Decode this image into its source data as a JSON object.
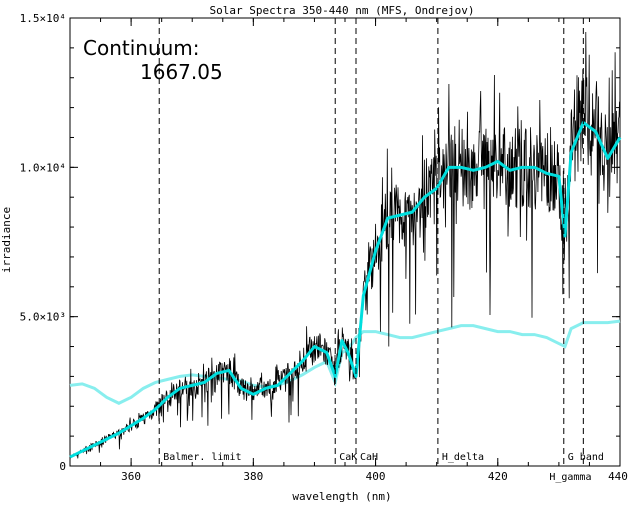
{
  "chart_data": {
    "type": "line",
    "title": "Solar Spectra 350-440 nm (MFS, Ondrejov)",
    "xlabel": "wavelength (nm)",
    "ylabel": "irradiance",
    "xlim": [
      350,
      440
    ],
    "ylim": [
      0,
      15000
    ],
    "xticks": [
      360,
      380,
      400,
      420,
      440
    ],
    "xtick_labels": [
      "360",
      "380",
      "400",
      "420",
      "440"
    ],
    "yticks": [
      0,
      5000,
      10000,
      15000
    ],
    "ytick_labels": [
      "0",
      "5.0×10³",
      "1.0×10⁴",
      "1.5×10⁴"
    ],
    "annotation": {
      "line1": "Continuum:",
      "line2": "1667.05"
    },
    "colors": {
      "spectrum": "#000000",
      "smoothed": "#00dede",
      "continuum": "#88eeee"
    },
    "lines": [
      {
        "label": "Balmer. limit",
        "x": 364.6
      },
      {
        "label": "CaK",
        "x": 393.4
      },
      {
        "label": "CaH",
        "x": 396.8
      },
      {
        "label": "H_delta",
        "x": 410.2
      },
      {
        "label": "G band",
        "x": 430.8
      },
      {
        "label": "H_gamma",
        "x": 434.0
      }
    ],
    "series": [
      {
        "x": [
          350,
          352,
          354,
          356,
          358,
          360,
          362,
          364,
          366,
          368,
          370,
          372,
          374,
          376,
          378,
          380,
          382,
          384,
          386,
          388,
          390,
          392,
          393.4,
          394.5,
          395.5,
          396.8,
          398,
          400,
          402,
          404,
          406,
          408,
          410,
          412,
          414,
          416,
          418,
          420,
          422,
          424,
          426,
          428,
          430,
          431,
          432,
          434,
          436,
          438,
          440
        ],
        "values": [
          300,
          500,
          700,
          900,
          1100,
          1350,
          1600,
          1900,
          2300,
          2600,
          2700,
          2800,
          3100,
          3200,
          2600,
          2400,
          2600,
          2700,
          3100,
          3500,
          4000,
          3800,
          3000,
          4200,
          3800,
          3000,
          5700,
          7200,
          8300,
          8400,
          8500,
          9000,
          9300,
          10000,
          10000,
          9900,
          10000,
          10200,
          9900,
          10000,
          10000,
          9800,
          9700,
          7700,
          10500,
          11500,
          11200,
          10300,
          11000
        ]
      },
      {
        "x": [
          350,
          352,
          354,
          356,
          358,
          360,
          362,
          364,
          366,
          368,
          370,
          372,
          374,
          376,
          378,
          380,
          382,
          384,
          386,
          388,
          390,
          392,
          393.4,
          394.5,
          395.5,
          396.8,
          398,
          400,
          402,
          404,
          406,
          408,
          410,
          412,
          414,
          416,
          418,
          420,
          422,
          424,
          426,
          428,
          430,
          431,
          432,
          434,
          436,
          438,
          440
        ],
        "values": [
          2700,
          2750,
          2600,
          2300,
          2100,
          2300,
          2600,
          2800,
          2900,
          3000,
          3050,
          3000,
          2950,
          2900,
          2850,
          2700,
          2650,
          2700,
          2850,
          3050,
          3300,
          3500,
          2800,
          3800,
          3900,
          4300,
          4500,
          4500,
          4400,
          4300,
          4300,
          4400,
          4500,
          4600,
          4700,
          4700,
          4600,
          4500,
          4500,
          4400,
          4400,
          4300,
          4100,
          4000,
          4600,
          4800,
          4800,
          4800,
          4850
        ]
      }
    ]
  }
}
